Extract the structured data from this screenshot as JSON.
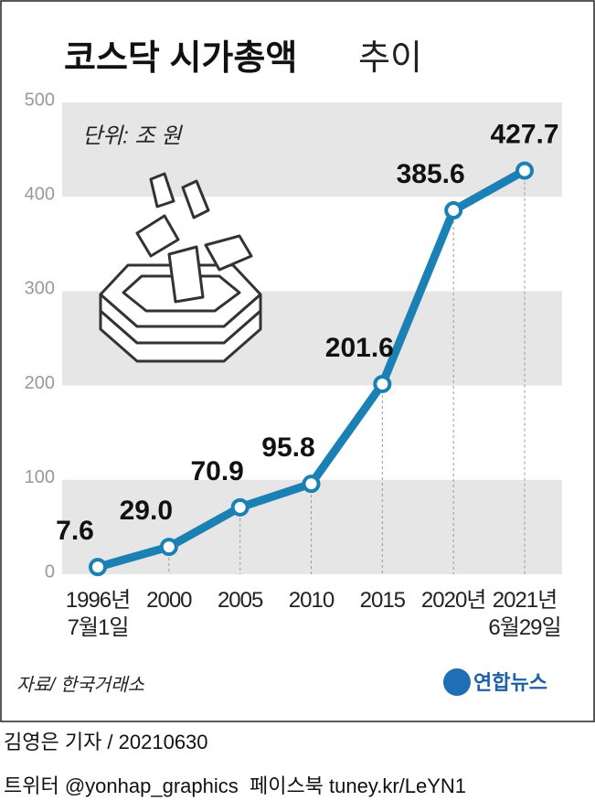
{
  "chart_data": {
    "type": "line",
    "title": "코스닥 시가총액",
    "title_suffix": "추이",
    "unit_note": "단위: 조 원",
    "categories": [
      "1996년\n7월1일",
      "2000",
      "2005",
      "2010",
      "2015",
      "2020년",
      "2021년\n6월29일"
    ],
    "values": [
      7.6,
      29.0,
      70.9,
      95.8,
      201.6,
      385.6,
      427.7
    ],
    "value_labels": [
      "7.6",
      "29.0",
      "70.9",
      "95.8",
      "201.6",
      "385.6",
      "427.7"
    ],
    "color": "#1b80b4",
    "ylim": [
      0,
      500
    ],
    "yticks": [
      0,
      100,
      200,
      300,
      400,
      500
    ],
    "grid": "bands",
    "source": "자료/ 한국거래소"
  },
  "logo": "연합뉴스",
  "footer": {
    "byline": "김영은 기자 / 20210630",
    "sns": "트위터 @yonhap_graphics  페이스북 tuney.kr/LeYN1"
  }
}
